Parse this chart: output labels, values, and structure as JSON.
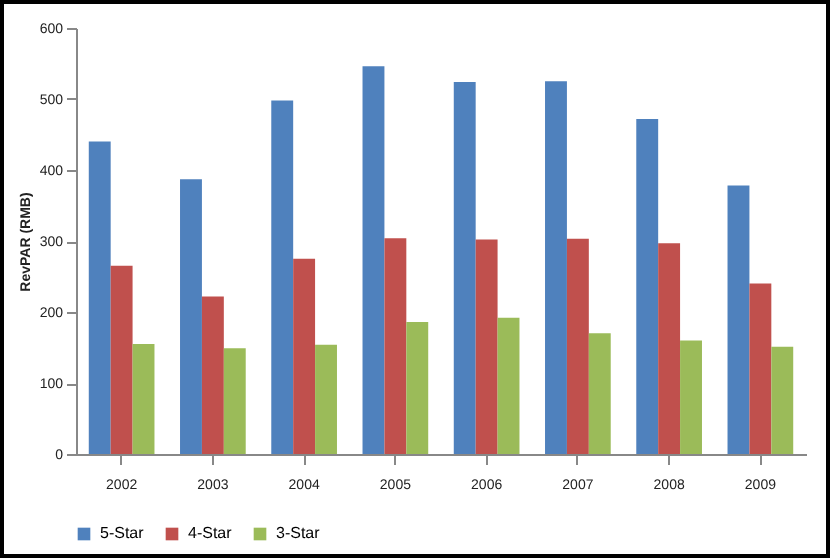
{
  "chart_data": {
    "type": "bar",
    "ylabel": "RevPAR (RMB)",
    "categories": [
      "2002",
      "2003",
      "2004",
      "2005",
      "2006",
      "2007",
      "2008",
      "2009"
    ],
    "series": [
      {
        "name": "5-Star",
        "color": "#4f81bd",
        "values": [
          440,
          387,
          498,
          546,
          524,
          525,
          472,
          378
        ]
      },
      {
        "name": "4-Star",
        "color": "#c0504d",
        "values": [
          265,
          222,
          275,
          304,
          302,
          303,
          297,
          240
        ]
      },
      {
        "name": "3-Star",
        "color": "#9bbb59",
        "values": [
          155,
          149,
          154,
          186,
          192,
          170,
          160,
          151
        ]
      }
    ],
    "ylim": [
      0,
      600
    ],
    "yticks": [
      0,
      100,
      200,
      300,
      400,
      500,
      600
    ],
    "grid": false,
    "legend": "bottom"
  }
}
